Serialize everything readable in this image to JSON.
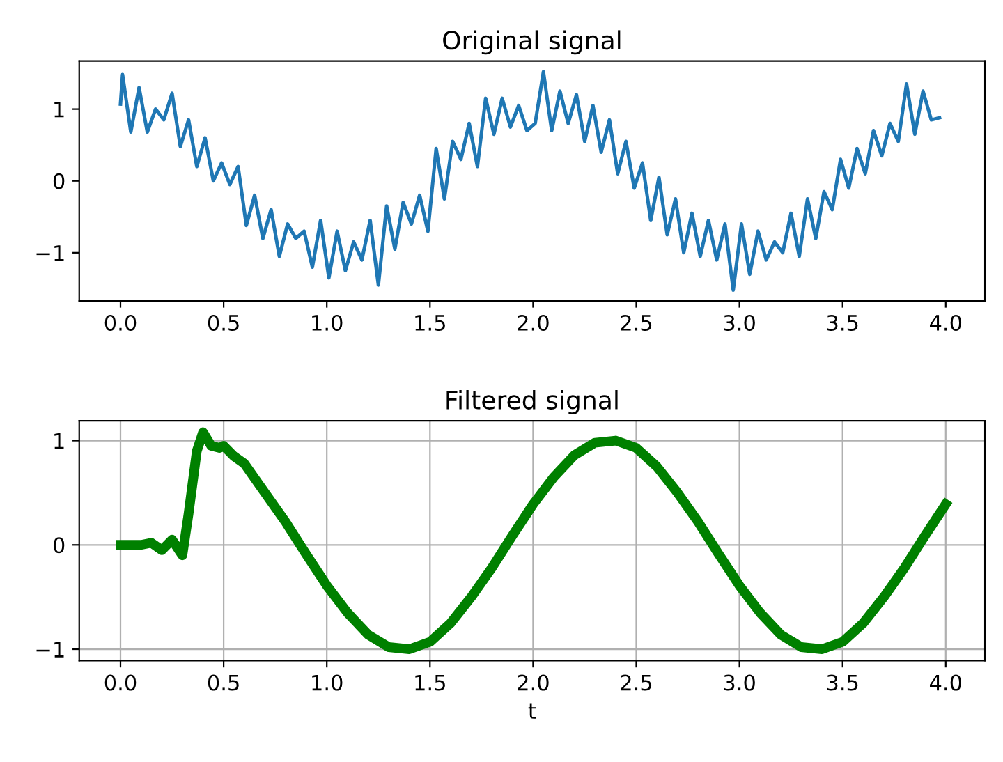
{
  "chart_data": [
    {
      "type": "line",
      "title": "Original signal",
      "xlim": [
        -0.2,
        4.19
      ],
      "ylim": [
        -1.67,
        1.67
      ],
      "xticks": [
        {
          "value": 0,
          "label": "0.0"
        },
        {
          "value": 0.5,
          "label": "0.5"
        },
        {
          "value": 1,
          "label": "1.0"
        },
        {
          "value": 1.5,
          "label": "1.5"
        },
        {
          "value": 2,
          "label": "2.0"
        },
        {
          "value": 2.5,
          "label": "2.5"
        },
        {
          "value": 3,
          "label": "3.0"
        },
        {
          "value": 3.5,
          "label": "3.5"
        },
        {
          "value": 4,
          "label": "4.0"
        }
      ],
      "yticks": [
        {
          "value": -1,
          "label": "−1"
        },
        0,
        1
      ],
      "grid": false,
      "series": [
        {
          "color": "#1f77b4",
          "x": [
            0,
            0.01,
            0.05,
            0.09,
            0.13,
            0.17,
            0.21,
            0.25,
            0.29,
            0.33,
            0.37,
            0.41,
            0.45,
            0.49,
            0.53,
            0.57,
            0.61,
            0.65,
            0.69,
            0.73,
            0.77,
            0.81,
            0.85,
            0.89,
            0.93,
            0.97,
            1.01,
            1.05,
            1.09,
            1.13,
            1.17,
            1.21,
            1.25,
            1.29,
            1.33,
            1.37,
            1.41,
            1.45,
            1.49,
            1.53,
            1.57,
            1.61,
            1.65,
            1.69,
            1.73,
            1.77,
            1.81,
            1.85,
            1.89,
            1.93,
            1.97,
            2.01,
            2.05,
            2.09,
            2.13,
            2.17,
            2.21,
            2.25,
            2.29,
            2.33,
            2.37,
            2.41,
            2.45,
            2.49,
            2.53,
            2.57,
            2.61,
            2.65,
            2.69,
            2.73,
            2.77,
            2.81,
            2.85,
            2.89,
            2.93,
            2.97,
            3.01,
            3.05,
            3.09,
            3.13,
            3.17,
            3.21,
            3.25,
            3.29,
            3.33,
            3.37,
            3.41,
            3.45,
            3.49,
            3.53,
            3.57,
            3.61,
            3.65,
            3.69,
            3.73,
            3.77,
            3.81,
            3.85,
            3.89,
            3.93,
            3.97
          ],
          "values": [
            1.07,
            1.48,
            0.68,
            1.3,
            0.68,
            1.0,
            0.85,
            1.22,
            0.48,
            0.85,
            0.2,
            0.6,
            0.0,
            0.25,
            -0.05,
            0.2,
            -0.62,
            -0.2,
            -0.8,
            -0.4,
            -1.05,
            -0.6,
            -0.8,
            -0.7,
            -1.2,
            -0.55,
            -1.35,
            -0.7,
            -1.25,
            -0.85,
            -1.1,
            -0.55,
            -1.45,
            -0.35,
            -0.95,
            -0.3,
            -0.6,
            -0.2,
            -0.7,
            0.45,
            -0.25,
            0.55,
            0.3,
            0.8,
            0.2,
            1.15,
            0.65,
            1.15,
            0.75,
            1.05,
            0.7,
            0.8,
            1.52,
            0.7,
            1.25,
            0.8,
            1.2,
            0.55,
            1.05,
            0.4,
            0.85,
            0.1,
            0.55,
            -0.1,
            0.25,
            -0.55,
            0.05,
            -0.75,
            -0.25,
            -1.0,
            -0.45,
            -1.05,
            -0.55,
            -1.1,
            -0.6,
            -1.52,
            -0.6,
            -1.3,
            -0.7,
            -1.1,
            -0.85,
            -1.0,
            -0.45,
            -1.05,
            -0.25,
            -0.8,
            -0.15,
            -0.4,
            0.3,
            -0.1,
            0.45,
            0.1,
            0.7,
            0.35,
            0.8,
            0.55,
            1.35,
            0.65,
            1.25,
            0.85,
            0.88
          ]
        }
      ]
    },
    {
      "type": "line",
      "title": "Filtered signal",
      "xlabel": "t",
      "xlim": [
        -0.2,
        4.19
      ],
      "ylim": [
        -1.11,
        1.19
      ],
      "xticks": [
        {
          "value": 0,
          "label": "0.0"
        },
        {
          "value": 0.5,
          "label": "0.5"
        },
        {
          "value": 1,
          "label": "1.0"
        },
        {
          "value": 1.5,
          "label": "1.5"
        },
        {
          "value": 2,
          "label": "2.0"
        },
        {
          "value": 2.5,
          "label": "2.5"
        },
        {
          "value": 3,
          "label": "3.0"
        },
        {
          "value": 3.5,
          "label": "3.5"
        },
        {
          "value": 4,
          "label": "4.0"
        }
      ],
      "yticks": [
        {
          "value": -1,
          "label": "−1"
        },
        0,
        1
      ],
      "grid": true,
      "series": [
        {
          "color": "#008000",
          "x": [
            0,
            0.1,
            0.15,
            0.2,
            0.25,
            0.3,
            0.33,
            0.37,
            0.4,
            0.44,
            0.48,
            0.5,
            0.55,
            0.6,
            0.7,
            0.8,
            0.9,
            1.0,
            1.1,
            1.2,
            1.3,
            1.4,
            1.5,
            1.6,
            1.7,
            1.8,
            1.9,
            2.0,
            2.1,
            2.2,
            2.3,
            2.4,
            2.5,
            2.6,
            2.7,
            2.8,
            2.9,
            3.0,
            3.1,
            3.2,
            3.3,
            3.4,
            3.5,
            3.6,
            3.7,
            3.8,
            3.9,
            4.0
          ],
          "values": [
            0,
            0.0,
            0.02,
            -0.05,
            0.05,
            -0.1,
            0.3,
            0.9,
            1.08,
            0.95,
            0.93,
            0.95,
            0.85,
            0.78,
            0.5,
            0.22,
            -0.09,
            -0.39,
            -0.65,
            -0.86,
            -0.98,
            -1.0,
            -0.93,
            -0.75,
            -0.5,
            -0.22,
            0.09,
            0.39,
            0.65,
            0.86,
            0.98,
            1.0,
            0.93,
            0.75,
            0.5,
            0.22,
            -0.09,
            -0.39,
            -0.65,
            -0.86,
            -0.98,
            -1.0,
            -0.93,
            -0.75,
            -0.5,
            -0.22,
            0.09,
            0.39
          ]
        }
      ]
    }
  ]
}
